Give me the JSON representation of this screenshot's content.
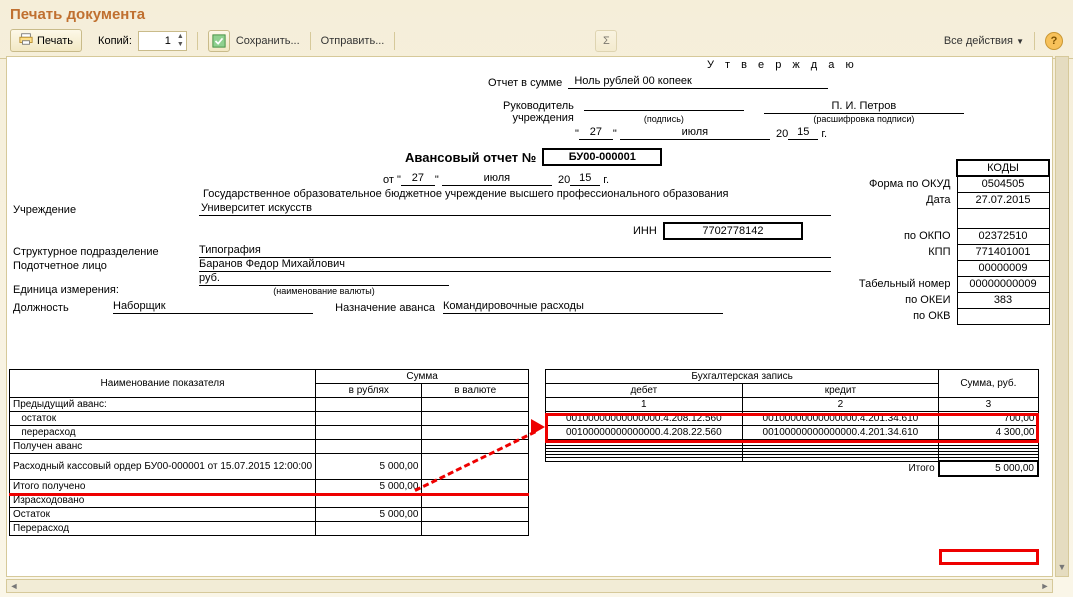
{
  "window_title": "Печать документа",
  "toolbar": {
    "print": "Печать",
    "copies_label": "Копий:",
    "copies_value": "1",
    "save": "Сохранить...",
    "send": "Отправить...",
    "all_actions": "Все действия"
  },
  "colors": {
    "title": "#c07030",
    "highlight": "#e00000",
    "toolbar_border": "#d6c99a"
  },
  "approve_label": "У т в е р ж д а ю",
  "report_sum_label": "Отчет в сумме",
  "report_sum_value": "Ноль рублей 00 копеек",
  "head_label1": "Руководитель",
  "head_label2": "учреждения",
  "head_sign_sub": "(подпись)",
  "head_name": "П. И. Петров",
  "head_name_sub": "(расшифровка подписи)",
  "date_top": {
    "day": "27",
    "month": "июля",
    "year_prefix": "20",
    "year": "15",
    "year_suffix": "г."
  },
  "doc_title": "Авансовый отчет №",
  "doc_number": "БУ00-000001",
  "date_from_label": "от",
  "date_from": {
    "day": "27",
    "month": "июля",
    "year_prefix": "20",
    "year": "15",
    "year_suffix": "г."
  },
  "org_line": "Государственное образовательное бюджетное учреждение высшего профессионального образования",
  "org_label": "Учреждение",
  "org_name": "Университет искусств",
  "inn_label": "ИНН",
  "inn_value": "7702778142",
  "unit_label": "Структурное подразделение",
  "unit_value": "Типография",
  "person_label": "Подотчетное лицо",
  "person_value": "Баранов Федор Михайлович",
  "measure_label": "Единица измерения:",
  "measure_value": "руб.",
  "measure_sub": "(наименование валюты)",
  "position_label": "Должность",
  "position_value": "Наборщик",
  "purpose_label": "Назначение аванса",
  "purpose_value": "Командировочные расходы",
  "codes": {
    "header": "КОДЫ",
    "okud_label": "Форма по ОКУД",
    "okud": "0504505",
    "date_label": "Дата",
    "date": "27.07.2015",
    "okpo_label": "по ОКПО",
    "okpo": "02372510",
    "kpp_label": "КПП",
    "kpp": "771401001",
    "row5": "00000009",
    "tabno_label": "Табельный номер",
    "tabno": "00000000009",
    "okei_label": "по ОКЕИ",
    "okei": "383",
    "okv_label": "по ОКВ"
  },
  "left_table": {
    "h_name": "Наименование показателя",
    "h_sum": "Сумма",
    "h_rub": "в рублях",
    "h_val": "в валюте",
    "rows": [
      {
        "name": "Предыдущий аванс:",
        "rub": "",
        "val": ""
      },
      {
        "name": "   остаток",
        "rub": "",
        "val": ""
      },
      {
        "name": "   перерасход",
        "rub": "",
        "val": ""
      },
      {
        "name": "Получен аванс",
        "rub": "",
        "val": ""
      },
      {
        "name": "Расходный кассовый ордер БУ00-000001 от 15.07.2015 12:00:00",
        "rub": "5 000,00",
        "val": ""
      },
      {
        "name": "Итого получено",
        "rub": "5 000,00",
        "val": ""
      },
      {
        "name": "Израсходовано",
        "rub": "",
        "val": ""
      },
      {
        "name": "Остаток",
        "rub": "5 000,00",
        "val": ""
      },
      {
        "name": "Перерасход",
        "rub": "",
        "val": ""
      }
    ]
  },
  "right_table": {
    "h_entry": "Бухгалтерская запись",
    "h_debit": "дебет",
    "h_credit": "кредит",
    "h_sum": "Сумма, руб.",
    "num1": "1",
    "num2": "2",
    "num3": "3",
    "rows": [
      {
        "d": "00100000000000000.4.208.12.560",
        "c": "00100000000000000.4.201.34.610",
        "s": "700,00"
      },
      {
        "d": "00100000000000000.4.208.22.560",
        "c": "00100000000000000.4.201.34.610",
        "s": "4 300,00"
      },
      {
        "d": "",
        "c": "",
        "s": ""
      },
      {
        "d": "",
        "c": "",
        "s": ""
      },
      {
        "d": "",
        "c": "",
        "s": ""
      },
      {
        "d": "",
        "c": "",
        "s": ""
      },
      {
        "d": "",
        "c": "",
        "s": ""
      },
      {
        "d": "",
        "c": "",
        "s": ""
      },
      {
        "d": "",
        "c": "",
        "s": ""
      }
    ],
    "total_label": "Итого",
    "total_value": "5 000,00"
  }
}
